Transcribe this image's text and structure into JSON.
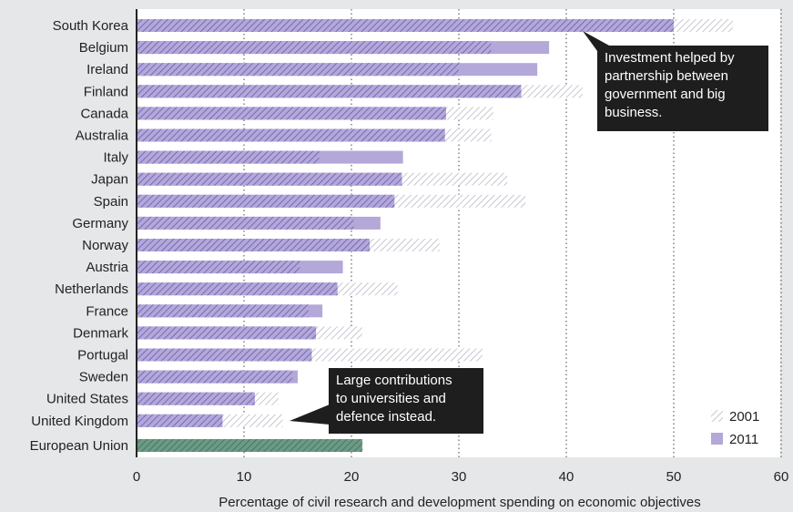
{
  "chart_data": {
    "type": "bar",
    "orientation": "horizontal",
    "xlabel": "Percentage of civil research and development spending on economic objectives",
    "xlim": [
      0,
      60
    ],
    "xticks": [
      0,
      10,
      20,
      30,
      40,
      50,
      60
    ],
    "grid": "vertical dotted",
    "legend_position": "bottom-right",
    "series_names": [
      "2001",
      "2011"
    ],
    "categories": [
      "South Korea",
      "Belgium",
      "Ireland",
      "Finland",
      "Canada",
      "Australia",
      "Italy",
      "Japan",
      "Spain",
      "Germany",
      "Norway",
      "Austria",
      "Netherlands",
      "France",
      "Denmark",
      "Portugal",
      "Sweden",
      "United States",
      "United Kingdom",
      "European Union"
    ],
    "series": [
      {
        "name": "2001",
        "values": [
          55.5,
          33.0,
          30.0,
          41.5,
          33.2,
          33.0,
          17.0,
          34.5,
          36.2,
          20.2,
          28.2,
          15.2,
          24.3,
          16.0,
          21.0,
          32.2,
          14.5,
          13.2,
          13.6,
          21.1
        ]
      },
      {
        "name": "2011",
        "values": [
          50.0,
          38.4,
          37.3,
          35.8,
          28.8,
          28.7,
          24.8,
          24.7,
          24.0,
          22.7,
          21.7,
          19.2,
          18.7,
          17.3,
          16.7,
          16.3,
          15.0,
          11.0,
          8.0,
          21.0
        ]
      }
    ],
    "colors": {
      "2011": "#b3a8d8",
      "2001": "#c2c0cc",
      "hatch": "#6a5ab0",
      "eu": "#6c9a85",
      "eu_hatch": "#3f7058",
      "callout": "#1e1e1e"
    },
    "annotations": [
      {
        "target": "South Korea",
        "text": [
          "Investment helped by",
          "partnership between",
          "government and big",
          "business."
        ]
      },
      {
        "target": "United Kingdom",
        "text": [
          "Large contributions",
          "to universities and",
          "defence instead."
        ]
      }
    ]
  }
}
